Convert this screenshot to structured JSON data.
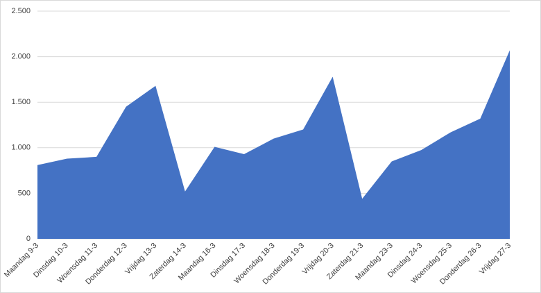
{
  "chart_data": {
    "type": "area",
    "categories": [
      "Maandag 9-3",
      "Dinsdag 10-3",
      "Woensdag 11-3",
      "Donderdag 12-3",
      "Vrijdag 13-3",
      "Zaterdag 14-3",
      "Maandag 16-3",
      "Dinsdag 17-3",
      "Woensdag 18-3",
      "Donderdag 19-3",
      "Vrijdag 20-3",
      "Zaterdag 21-3",
      "Maandag 23-3",
      "Dinsdag 24-3",
      "Woensdag 25-3",
      "Donderdag 26-3",
      "Vrijdag 27-3"
    ],
    "values": [
      810,
      880,
      900,
      1450,
      1680,
      520,
      1010,
      930,
      1100,
      1200,
      1780,
      440,
      850,
      975,
      1170,
      1320,
      2070
    ],
    "color": "#4472c4",
    "ylim": [
      0,
      2500
    ],
    "yticks": [
      0,
      500,
      {
        "value": 1000,
        "label": "1.000"
      },
      {
        "value": 1500,
        "label": "1.500"
      },
      {
        "value": 2000,
        "label": "2.000"
      },
      {
        "value": 2500,
        "label": "2.500"
      }
    ],
    "grid": true
  }
}
